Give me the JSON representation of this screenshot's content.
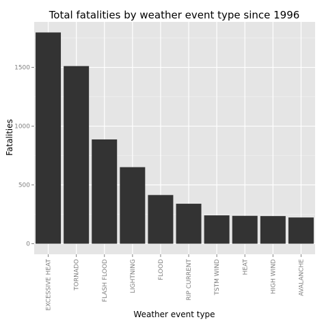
{
  "chart_data": {
    "type": "bar",
    "title": "Total fatalities by weather event type since 1996",
    "xlabel": "Weather event type",
    "ylabel": "Fatalities",
    "categories": [
      "EXCESSIVE HEAT",
      "TORNADO",
      "FLASH FLOOD",
      "LIGHTNING",
      "FLOOD",
      "RIP CURRENT",
      "TSTM WIND",
      "HEAT",
      "HIGH WIND",
      "AVALANCHE"
    ],
    "values": [
      1797,
      1511,
      887,
      651,
      414,
      340,
      241,
      237,
      235,
      223
    ],
    "yticks": [
      0,
      500,
      1000,
      1500
    ],
    "ylim": [
      -90,
      1887
    ],
    "grid": true,
    "legend": "none",
    "colors": {
      "panel_background": "#e5e5e5",
      "grid_major": "#ffffff",
      "grid_minor": "#f2f2f2",
      "bar_fill": "#333333",
      "tick_text": "#7f7f7f"
    }
  }
}
